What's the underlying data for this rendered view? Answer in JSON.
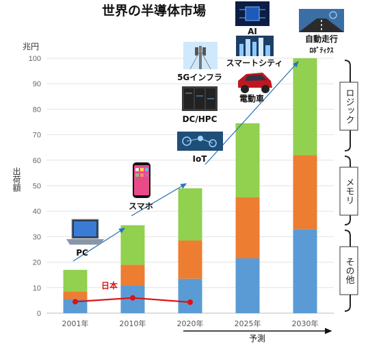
{
  "chart_data": {
    "type": "bar",
    "title": "世界の半導体市場",
    "ylabel_unit": "兆円",
    "ylabel": "出荷額",
    "ylim": [
      0,
      100
    ],
    "yticks": [
      0,
      10,
      20,
      30,
      40,
      50,
      60,
      70,
      80,
      90,
      100
    ],
    "categories": [
      "2001年",
      "2010年",
      "2020年",
      "2025年",
      "2030年"
    ],
    "stack_order": [
      "その他",
      "メモリ",
      "ロジック"
    ],
    "series": [
      {
        "name": "その他",
        "color": "#5b9bd5",
        "values": [
          5.5,
          11,
          13.5,
          21.5,
          33
        ]
      },
      {
        "name": "メモリ",
        "color": "#ed7d31",
        "values": [
          3,
          8,
          15,
          24,
          29
        ]
      },
      {
        "name": "ロジック",
        "color": "#92d050",
        "values": [
          8.5,
          15.5,
          20.5,
          29,
          38
        ]
      }
    ],
    "japan_line": {
      "label": "日本",
      "color": "#e01010",
      "values": [
        4.5,
        6,
        4.3
      ]
    },
    "forecast_label": "予測",
    "brace_labels": [
      "ロジック",
      "メモリ",
      "その他"
    ],
    "annotations": [
      "PC",
      "スマホ",
      "IoT",
      "DC/HPC",
      "5Gインフラ",
      "電動車",
      "スマートシティ",
      "AI",
      "自動走行",
      "ﾛﾎﾞﾃｨｸｽ"
    ]
  },
  "icons": {
    "pc": "laptop-icon",
    "smartphone": "smartphone-icon",
    "iot": "iot-icon",
    "dc": "server-rack-icon",
    "5g": "antenna-tower-icon",
    "ev": "electric-car-icon",
    "smartcity": "city-icon",
    "ai": "ai-chip-icon",
    "autonomous": "autonomous-driving-icon"
  }
}
